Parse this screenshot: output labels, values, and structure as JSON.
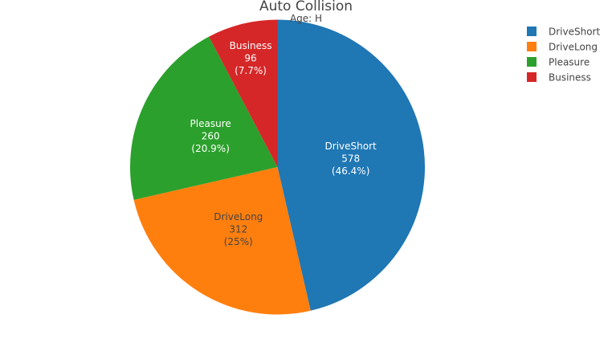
{
  "chart_data": {
    "type": "pie",
    "title": "Auto Collision",
    "subtitle": "Age: H",
    "slices": [
      {
        "label": "DriveShort",
        "value": 578,
        "percent": "46.4%",
        "color": "#1f77b4",
        "text_color": "#ffffff"
      },
      {
        "label": "DriveLong",
        "value": 312,
        "percent": "25%",
        "color": "#ff7f0e",
        "text_color": "#444444"
      },
      {
        "label": "Pleasure",
        "value": 260,
        "percent": "20.9%",
        "color": "#2ca02c",
        "text_color": "#ffffff"
      },
      {
        "label": "Business",
        "value": 96,
        "percent": "7.7%",
        "color": "#d62728",
        "text_color": "#ffffff"
      }
    ],
    "direction": "clockwise",
    "start_angle_deg": 0,
    "legend_position": "top-right",
    "legend": [
      "DriveShort",
      "DriveLong",
      "Pleasure",
      "Business"
    ]
  }
}
